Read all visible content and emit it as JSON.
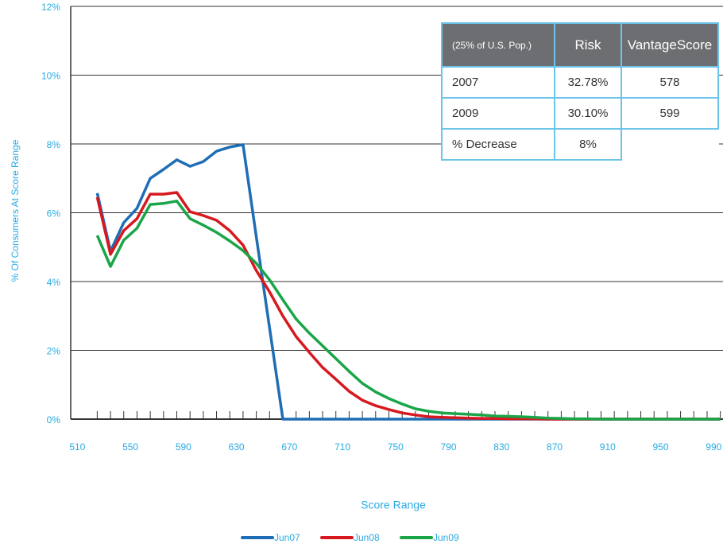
{
  "chart_data": {
    "type": "line",
    "x_label": "Score Range",
    "y_label": "% Of Consumers At Score Range",
    "x": [
      525,
      535,
      545,
      555,
      565,
      575,
      585,
      595,
      605,
      615,
      625,
      635,
      645,
      655,
      665,
      675,
      685,
      695,
      705,
      715,
      725,
      735,
      745,
      755,
      765,
      775,
      785,
      795,
      805,
      815,
      825,
      835,
      845,
      855,
      865,
      875,
      885,
      895,
      905,
      915,
      925,
      935,
      945,
      955,
      965,
      975,
      985,
      995
    ],
    "series": [
      {
        "name": "Jun07",
        "color": "#1f6eb5",
        "values": [
          6.57,
          4.88,
          5.71,
          6.13,
          7.0,
          7.26,
          7.54,
          7.35,
          7.49,
          7.79,
          7.91,
          7.98,
          5.3,
          2.65,
          0,
          0,
          0,
          0,
          0,
          0,
          0,
          0,
          0,
          0,
          0,
          0,
          0,
          0,
          0,
          0,
          0,
          0,
          0,
          0,
          0,
          0,
          0,
          0,
          0,
          0,
          0,
          0,
          0,
          0,
          0,
          0,
          0,
          0
        ]
      },
      {
        "name": "Jun08",
        "color": "#d7191f",
        "values": [
          6.45,
          4.79,
          5.48,
          5.83,
          6.54,
          6.54,
          6.59,
          6.03,
          5.92,
          5.78,
          5.48,
          5.06,
          4.32,
          3.7,
          3.0,
          2.4,
          1.94,
          1.5,
          1.16,
          0.81,
          0.55,
          0.39,
          0.28,
          0.18,
          0.12,
          0.07,
          0.05,
          0.04,
          0.03,
          0.02,
          0.02,
          0.01,
          0.01,
          0.01,
          0,
          0,
          0,
          0,
          0,
          0,
          0,
          0,
          0,
          0,
          0,
          0,
          0,
          0
        ]
      },
      {
        "name": "Jun09",
        "color": "#1aa548",
        "values": [
          5.34,
          4.44,
          5.2,
          5.55,
          6.24,
          6.27,
          6.34,
          5.83,
          5.64,
          5.43,
          5.18,
          4.9,
          4.53,
          4.05,
          3.47,
          2.91,
          2.5,
          2.13,
          1.76,
          1.39,
          1.04,
          0.79,
          0.6,
          0.44,
          0.3,
          0.23,
          0.18,
          0.16,
          0.14,
          0.12,
          0.09,
          0.08,
          0.07,
          0.05,
          0.03,
          0.02,
          0.01,
          0.01,
          0,
          0,
          0,
          0,
          0,
          0,
          0,
          0,
          0,
          0
        ]
      }
    ],
    "xlim": [
      505,
      997
    ],
    "xticks": [
      510,
      550,
      590,
      630,
      670,
      710,
      750,
      790,
      830,
      870,
      910,
      950,
      990
    ],
    "ylim": [
      0,
      12
    ],
    "yticks": [
      {
        "value": 0,
        "label": "0%"
      },
      {
        "value": 2,
        "label": "2%"
      },
      {
        "value": 4,
        "label": "4%"
      },
      {
        "value": 6,
        "label": "6%"
      },
      {
        "value": 8,
        "label": "8%"
      },
      {
        "value": 10,
        "label": "10%"
      },
      {
        "value": 12,
        "label": "12%"
      }
    ],
    "grid": true,
    "legend": "bottom",
    "table": {
      "header": [
        "(25% of U.S. Pop.)",
        "Risk",
        "VantageScore"
      ],
      "rows": [
        [
          "2007",
          "32.78%",
          "578"
        ],
        [
          "2009",
          "30.10%",
          "599"
        ],
        [
          "% Decrease",
          "8%"
        ]
      ]
    }
  }
}
